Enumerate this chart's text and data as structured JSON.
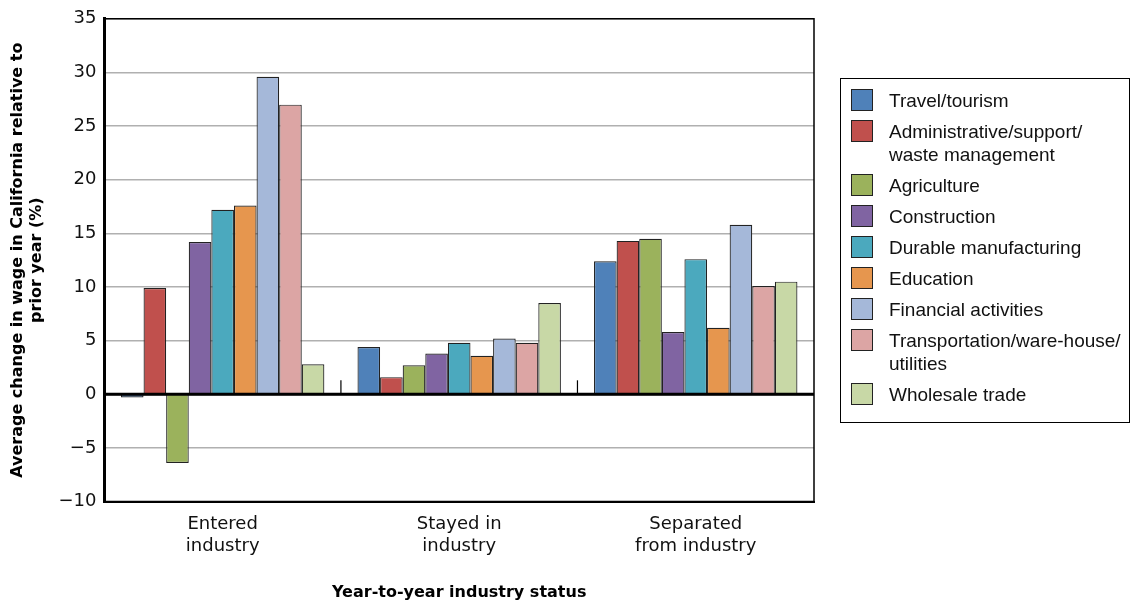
{
  "chart_data": {
    "type": "bar",
    "xlabel": "Year-to-year industry status",
    "ylabel": "Average change in wage in California relative to prior year (%)",
    "categories": [
      "Entered industry",
      "Stayed in industry",
      "Separated from industry"
    ],
    "series": [
      {
        "name": "Travel/tourism",
        "color": "#4f81b9",
        "values": [
          -0.3,
          4.4,
          12.4
        ]
      },
      {
        "name": "Administrative/support/waste management",
        "color": "#c0504d",
        "values": [
          9.9,
          1.6,
          14.3
        ]
      },
      {
        "name": "Agriculture",
        "color": "#9bb25c",
        "values": [
          -6.4,
          2.7,
          14.5
        ]
      },
      {
        "name": "Construction",
        "color": "#8064a2",
        "values": [
          14.2,
          3.8,
          5.8
        ]
      },
      {
        "name": "Durable manufacturing",
        "color": "#4ba9be",
        "values": [
          17.2,
          4.8,
          12.6
        ]
      },
      {
        "name": "Education",
        "color": "#e6964e",
        "values": [
          17.6,
          3.6,
          6.2
        ]
      },
      {
        "name": "Financial activities",
        "color": "#a5b8d9",
        "values": [
          29.6,
          5.2,
          15.8
        ]
      },
      {
        "name": "Transportation/ware-house/utilities",
        "color": "#dca5a4",
        "values": [
          27.0,
          4.8,
          10.1
        ]
      },
      {
        "name": "Wholesale trade",
        "color": "#c8d8a6",
        "values": [
          2.8,
          8.5,
          10.5
        ]
      }
    ],
    "ylim": [
      -10,
      35
    ],
    "yticks": [
      -10,
      -5,
      0,
      5,
      10,
      15,
      20,
      25,
      30,
      35
    ],
    "grid": "y",
    "legend": "right"
  }
}
